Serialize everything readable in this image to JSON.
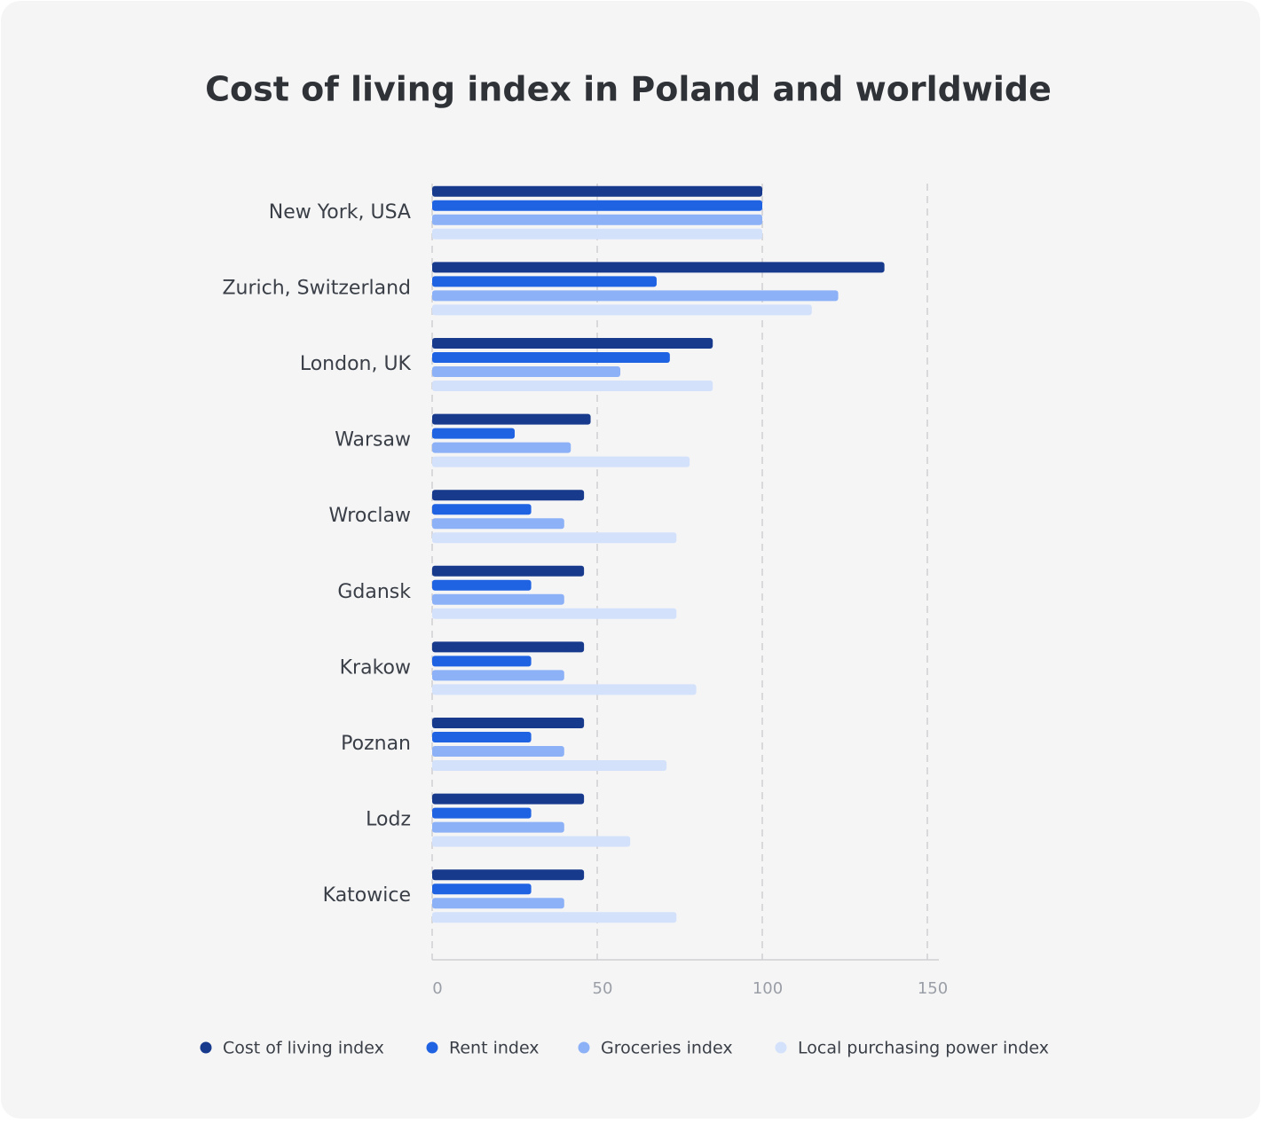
{
  "chart_data": {
    "type": "bar",
    "orientation": "horizontal",
    "title": "Cost of living index in Poland and worldwide",
    "categories": [
      "New York, USA",
      "Zurich, Switzerland",
      "London, UK",
      "Warsaw",
      "Wroclaw",
      "Gdansk",
      "Krakow",
      "Poznan",
      "Lodz",
      "Katowice"
    ],
    "series": [
      {
        "name": "Cost of living index",
        "color": "#173a8c",
        "values": [
          100,
          137,
          85,
          48,
          46,
          46,
          46,
          46,
          46,
          46
        ]
      },
      {
        "name": "Rent index",
        "color": "#1f63e3",
        "values": [
          100,
          68,
          72,
          25,
          30,
          30,
          30,
          30,
          30,
          30
        ]
      },
      {
        "name": "Groceries index",
        "color": "#8db1f6",
        "values": [
          100,
          123,
          57,
          42,
          40,
          40,
          40,
          40,
          40,
          40
        ]
      },
      {
        "name": "Local purchasing power index",
        "color": "#d3e1fb",
        "values": [
          100,
          115,
          85,
          78,
          74,
          74,
          80,
          71,
          60,
          74
        ]
      }
    ],
    "xlim": [
      0,
      150
    ],
    "xticks": [
      0,
      50,
      100,
      150
    ],
    "grid": true,
    "legend": "bottom"
  }
}
